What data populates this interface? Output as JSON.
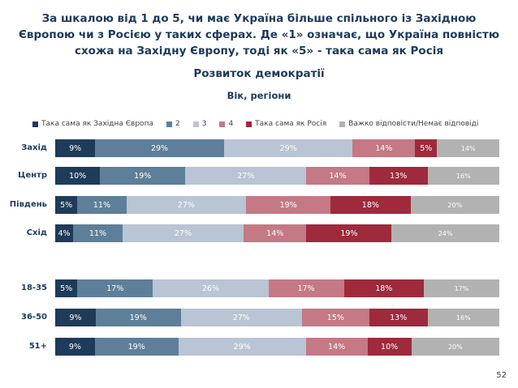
{
  "title_lines": [
    "За шкалою від 1 до 5, чи має Україна більше спільного із Західною",
    "Європою чи з Росією у таких сферах. Де «1» означає, що Україна повністю",
    "схожа на Західну Європу, тоді як «5» - така сама як Росія"
  ],
  "page_number": "52",
  "colors": [
    "#1f3b5a",
    "#5e7f99",
    "#b9c4d4",
    "#c47985",
    "#9e2a3c",
    "#b2b2b2"
  ],
  "chart_data": {
    "type": "bar",
    "orientation": "horizontal",
    "stacked": "percent",
    "title": "Розвиток демократії",
    "subtitle": "Вік, регіони",
    "legend": [
      "Така сама як Західна Європа",
      "2",
      "3",
      "4",
      "Така сама як Росія",
      "Важко відповісти/Немає відповіді"
    ],
    "categories": [
      "Захід",
      "Центр",
      "Південь",
      "Схід",
      "18-35",
      "36-50",
      "51+"
    ],
    "series": [
      {
        "name": "Така сама як Західна Європа",
        "values": [
          9,
          10,
          5,
          4,
          5,
          9,
          9
        ],
        "labels": [
          "9%",
          "10%",
          "5%",
          "4%",
          "5%",
          "9%",
          "9%"
        ]
      },
      {
        "name": "2",
        "values": [
          29,
          19,
          11,
          11,
          17,
          19,
          19
        ],
        "labels": [
          "29%",
          "19%",
          "11%",
          "11%",
          "17%",
          "19%",
          "19%"
        ]
      },
      {
        "name": "3",
        "values": [
          29,
          27,
          27,
          27,
          26,
          27,
          29
        ],
        "labels": [
          "29%",
          "27%",
          "27%",
          "27%",
          "26%",
          "27%",
          "29%"
        ]
      },
      {
        "name": "4",
        "values": [
          14,
          14,
          19,
          14,
          17,
          15,
          14
        ],
        "labels": [
          "14%",
          "14%",
          "19%",
          "14%",
          "17%",
          "15%",
          "14%"
        ]
      },
      {
        "name": "Така сама як Росія",
        "values": [
          5,
          13,
          18,
          19,
          18,
          13,
          10
        ],
        "labels": [
          "5%",
          "13%",
          "18%",
          "19%",
          "18%",
          "13%",
          "10%"
        ]
      },
      {
        "name": "Важко відповісти/Немає відповіді",
        "values": [
          14,
          16,
          20,
          24,
          17,
          16,
          20
        ],
        "labels": [
          "14%",
          "16%",
          "20%",
          "24%",
          "17%",
          "16%",
          "20%"
        ]
      }
    ]
  }
}
